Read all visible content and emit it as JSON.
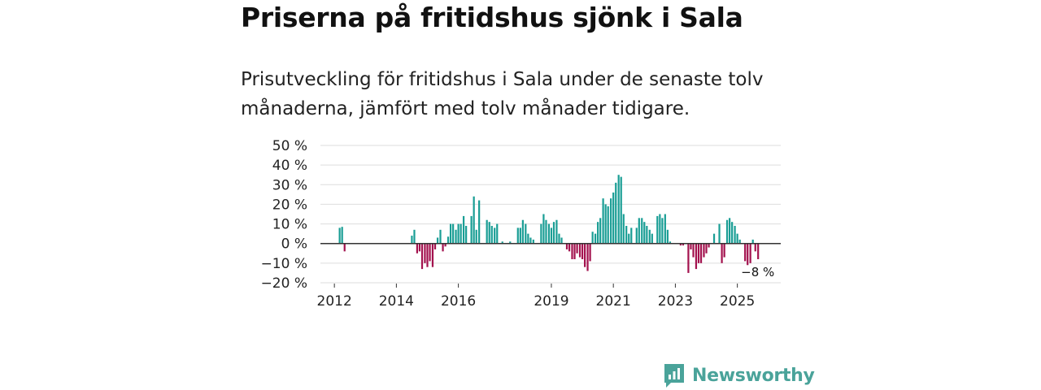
{
  "title": "Priserna på fritidshus sjönk i Sala",
  "subtitle": "Prisutveckling för fritidshus i Sala under de senaste tolv månaderna, jämfört med tolv månader tidigare.",
  "brand": {
    "name": "Newsworthy",
    "icon": "newsworthy-logo-icon",
    "color": "#4aa39a"
  },
  "colors": {
    "positive": "#1a9e95",
    "negative": "#a3124e",
    "grid": "#dddddd",
    "zero_line": "#333333"
  },
  "chart_data": {
    "type": "bar",
    "title": "Priserna på fritidshus sjönk i Sala",
    "xlabel": "",
    "ylabel": "",
    "ylim": [
      -20,
      50
    ],
    "y_ticks": [
      50,
      40,
      30,
      20,
      10,
      0,
      -10,
      -20
    ],
    "y_tick_labels": [
      "50 %",
      "40 %",
      "30 %",
      "20 %",
      "10 %",
      "0 %",
      "−10 %",
      "−20 %"
    ],
    "x_ticks": [
      "2012",
      "2014",
      "2016",
      "2019",
      "2021",
      "2023",
      "2025"
    ],
    "x_tick_positions": [
      2012.0,
      2014.0,
      2016.0,
      2019.0,
      2021.0,
      2023.0,
      2025.0
    ],
    "x_range": [
      2011.55,
      2026.4
    ],
    "bar_width_years": 0.058,
    "last_value_label": "−8 %",
    "points": [
      {
        "x": 2012.17,
        "v": 8
      },
      {
        "x": 2012.25,
        "v": 8.5
      },
      {
        "x": 2012.33,
        "v": -4
      },
      {
        "x": 2014.5,
        "v": 4
      },
      {
        "x": 2014.58,
        "v": 7
      },
      {
        "x": 2014.67,
        "v": -5
      },
      {
        "x": 2014.75,
        "v": -4
      },
      {
        "x": 2014.83,
        "v": -13
      },
      {
        "x": 2014.92,
        "v": -10
      },
      {
        "x": 2015.0,
        "v": -12
      },
      {
        "x": 2015.08,
        "v": -9
      },
      {
        "x": 2015.17,
        "v": -12
      },
      {
        "x": 2015.25,
        "v": -3
      },
      {
        "x": 2015.33,
        "v": 3
      },
      {
        "x": 2015.42,
        "v": 7
      },
      {
        "x": 2015.5,
        "v": -4
      },
      {
        "x": 2015.58,
        "v": -1.5
      },
      {
        "x": 2015.67,
        "v": 3.5
      },
      {
        "x": 2015.75,
        "v": 10
      },
      {
        "x": 2015.83,
        "v": 10
      },
      {
        "x": 2015.92,
        "v": 7
      },
      {
        "x": 2016.0,
        "v": 10
      },
      {
        "x": 2016.08,
        "v": 10
      },
      {
        "x": 2016.17,
        "v": 14
      },
      {
        "x": 2016.25,
        "v": 9
      },
      {
        "x": 2016.42,
        "v": 14
      },
      {
        "x": 2016.5,
        "v": 24
      },
      {
        "x": 2016.58,
        "v": 7
      },
      {
        "x": 2016.67,
        "v": 22
      },
      {
        "x": 2016.92,
        "v": 12
      },
      {
        "x": 2017.0,
        "v": 11
      },
      {
        "x": 2017.08,
        "v": 9
      },
      {
        "x": 2017.17,
        "v": 8
      },
      {
        "x": 2017.25,
        "v": 10
      },
      {
        "x": 2017.42,
        "v": 1
      },
      {
        "x": 2017.67,
        "v": 1
      },
      {
        "x": 2017.92,
        "v": 8
      },
      {
        "x": 2018.0,
        "v": 8
      },
      {
        "x": 2018.08,
        "v": 12
      },
      {
        "x": 2018.17,
        "v": 10
      },
      {
        "x": 2018.25,
        "v": 5
      },
      {
        "x": 2018.33,
        "v": 3
      },
      {
        "x": 2018.42,
        "v": 2
      },
      {
        "x": 2018.67,
        "v": 10
      },
      {
        "x": 2018.75,
        "v": 15
      },
      {
        "x": 2018.83,
        "v": 12
      },
      {
        "x": 2018.92,
        "v": 10
      },
      {
        "x": 2019.0,
        "v": 8
      },
      {
        "x": 2019.08,
        "v": 11
      },
      {
        "x": 2019.17,
        "v": 12
      },
      {
        "x": 2019.25,
        "v": 5
      },
      {
        "x": 2019.33,
        "v": 3
      },
      {
        "x": 2019.5,
        "v": -3
      },
      {
        "x": 2019.58,
        "v": -4
      },
      {
        "x": 2019.67,
        "v": -8
      },
      {
        "x": 2019.75,
        "v": -8
      },
      {
        "x": 2019.83,
        "v": -5
      },
      {
        "x": 2019.92,
        "v": -7
      },
      {
        "x": 2020.0,
        "v": -8
      },
      {
        "x": 2020.08,
        "v": -12
      },
      {
        "x": 2020.17,
        "v": -14
      },
      {
        "x": 2020.25,
        "v": -9
      },
      {
        "x": 2020.33,
        "v": 6
      },
      {
        "x": 2020.42,
        "v": 5
      },
      {
        "x": 2020.5,
        "v": 11
      },
      {
        "x": 2020.58,
        "v": 13
      },
      {
        "x": 2020.67,
        "v": 23
      },
      {
        "x": 2020.75,
        "v": 20
      },
      {
        "x": 2020.83,
        "v": 19
      },
      {
        "x": 2020.92,
        "v": 23
      },
      {
        "x": 2021.0,
        "v": 26
      },
      {
        "x": 2021.08,
        "v": 31
      },
      {
        "x": 2021.17,
        "v": 35
      },
      {
        "x": 2021.25,
        "v": 34
      },
      {
        "x": 2021.33,
        "v": 15
      },
      {
        "x": 2021.42,
        "v": 9
      },
      {
        "x": 2021.5,
        "v": 5
      },
      {
        "x": 2021.58,
        "v": 8
      },
      {
        "x": 2021.75,
        "v": 8
      },
      {
        "x": 2021.83,
        "v": 13
      },
      {
        "x": 2021.92,
        "v": 13
      },
      {
        "x": 2022.0,
        "v": 11
      },
      {
        "x": 2022.08,
        "v": 9
      },
      {
        "x": 2022.17,
        "v": 7
      },
      {
        "x": 2022.25,
        "v": 5
      },
      {
        "x": 2022.42,
        "v": 14
      },
      {
        "x": 2022.5,
        "v": 15
      },
      {
        "x": 2022.58,
        "v": 13
      },
      {
        "x": 2022.67,
        "v": 15
      },
      {
        "x": 2022.75,
        "v": 7
      },
      {
        "x": 2022.83,
        "v": 1
      },
      {
        "x": 2023.17,
        "v": -1
      },
      {
        "x": 2023.25,
        "v": -1
      },
      {
        "x": 2023.42,
        "v": -15
      },
      {
        "x": 2023.5,
        "v": -3
      },
      {
        "x": 2023.58,
        "v": -7
      },
      {
        "x": 2023.67,
        "v": -13
      },
      {
        "x": 2023.75,
        "v": -10
      },
      {
        "x": 2023.83,
        "v": -10
      },
      {
        "x": 2023.92,
        "v": -7
      },
      {
        "x": 2024.0,
        "v": -5
      },
      {
        "x": 2024.08,
        "v": -2
      },
      {
        "x": 2024.25,
        "v": 5
      },
      {
        "x": 2024.42,
        "v": 10
      },
      {
        "x": 2024.5,
        "v": -10
      },
      {
        "x": 2024.58,
        "v": -7
      },
      {
        "x": 2024.67,
        "v": 12
      },
      {
        "x": 2024.75,
        "v": 13
      },
      {
        "x": 2024.83,
        "v": 11
      },
      {
        "x": 2024.92,
        "v": 9
      },
      {
        "x": 2025.0,
        "v": 5
      },
      {
        "x": 2025.08,
        "v": 2
      },
      {
        "x": 2025.25,
        "v": -9
      },
      {
        "x": 2025.33,
        "v": -11
      },
      {
        "x": 2025.42,
        "v": -10
      },
      {
        "x": 2025.5,
        "v": 2
      },
      {
        "x": 2025.58,
        "v": -4
      },
      {
        "x": 2025.67,
        "v": -8
      }
    ]
  }
}
